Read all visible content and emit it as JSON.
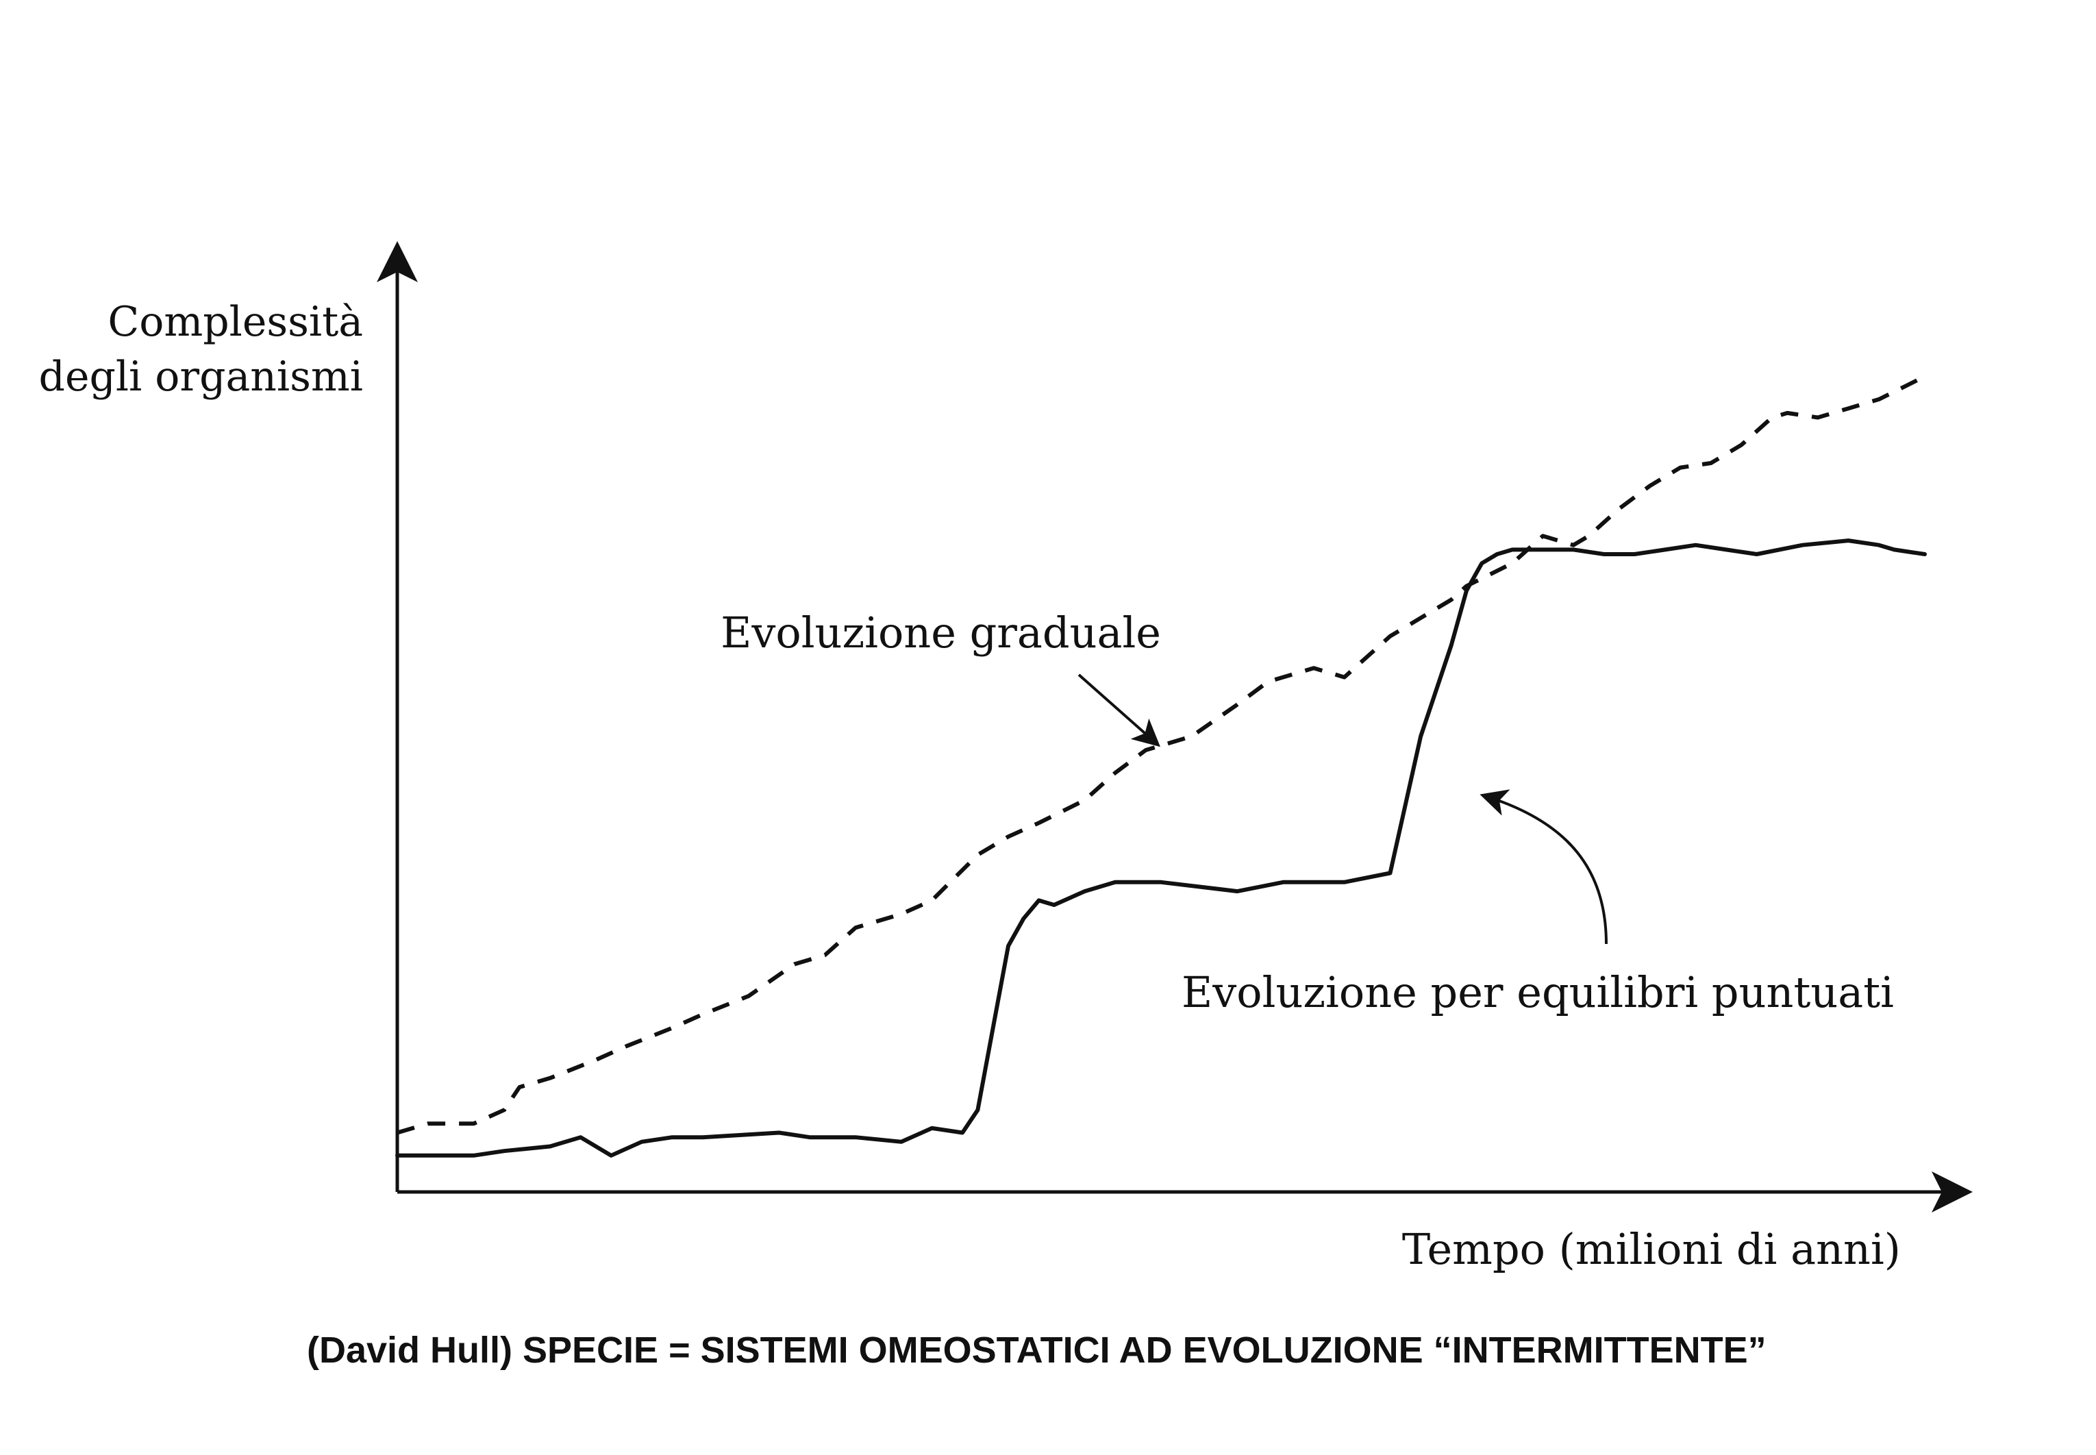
{
  "chart_data": {
    "type": "line",
    "title": "",
    "xlabel": "Tempo (milioni di anni)",
    "ylabel": [
      "Complessità",
      "degli organismi"
    ],
    "xlim": [
      0,
      100
    ],
    "ylim": [
      0,
      100
    ],
    "grid": false,
    "legend": "none",
    "series": [
      {
        "name": "Evoluzione graduale",
        "style": "dashed",
        "x": [
          0,
          2,
          5,
          7,
          8,
          10,
          13,
          15,
          18,
          20,
          23,
          26,
          28,
          30,
          33,
          35,
          38,
          40,
          42,
          45,
          47,
          49,
          50,
          52,
          55,
          57,
          60,
          62,
          63,
          65,
          67,
          69,
          70,
          73,
          75,
          77,
          78,
          80,
          82,
          84,
          86,
          88,
          90,
          91,
          93,
          95,
          97,
          100
        ],
        "y": [
          6.5,
          7.5,
          7.5,
          9,
          11.5,
          12.5,
          14.5,
          16,
          18,
          19.5,
          21.5,
          25,
          26,
          29,
          30.5,
          32,
          37,
          39,
          40.5,
          43,
          46,
          48.5,
          49,
          50,
          53.5,
          56,
          57.5,
          56.5,
          58,
          61,
          63,
          65,
          66.5,
          69,
          72,
          71,
          72,
          75,
          77.5,
          79.5,
          80,
          82,
          85,
          85.5,
          85,
          86,
          87,
          89.5
        ]
      },
      {
        "name": "Evoluzione per equilibri puntuati",
        "style": "solid",
        "x": [
          0,
          5,
          7,
          10,
          12,
          14,
          16,
          18,
          20,
          25,
          27,
          30,
          33,
          35,
          37,
          38,
          39,
          40,
          41,
          42,
          43,
          45,
          47,
          50,
          55,
          58,
          60,
          62,
          65,
          67,
          68,
          69,
          70,
          71,
          72,
          73,
          75,
          77,
          79,
          81,
          83,
          85,
          87,
          89,
          92,
          95,
          97,
          98,
          100
        ],
        "y": [
          4,
          4,
          4.5,
          5,
          6,
          4,
          5.5,
          6,
          6,
          6.5,
          6,
          6,
          5.5,
          7,
          6.5,
          9,
          18,
          27,
          30,
          32,
          31.5,
          33,
          34,
          34,
          33,
          34,
          34,
          34,
          35,
          50,
          55,
          60,
          66,
          69,
          70,
          70.5,
          70.5,
          70.5,
          70,
          70,
          70.5,
          71,
          70.5,
          70,
          71,
          71.5,
          71,
          70.5,
          70
        ]
      }
    ],
    "annotations": [
      {
        "text": "Evoluzione graduale",
        "target_series": 0
      },
      {
        "text": "Evoluzione per equilibri puntuati",
        "target_series": 1
      }
    ]
  },
  "caption": "(David Hull) SPECIE = SISTEMI OMEOSTATICI AD EVOLUZIONE “INTERMITTENTE”",
  "colors": {
    "ink": "#111111",
    "background": "#ffffff"
  }
}
